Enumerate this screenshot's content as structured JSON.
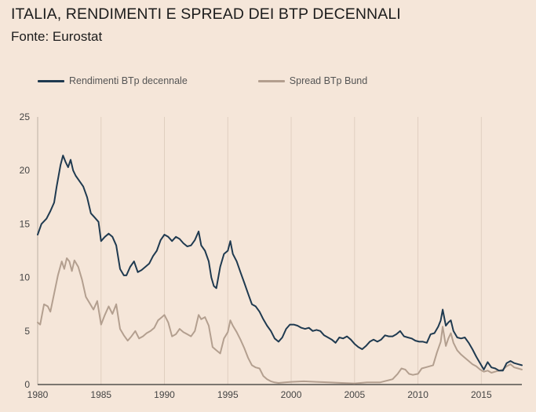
{
  "chart_data": {
    "type": "line",
    "title": "ITALIA, RENDIMENTI E SPREAD DEI BTP DECENNALI",
    "subtitle": "Fonte: Eurostat",
    "xlabel": "",
    "ylabel": "",
    "xlim": [
      1980,
      2018.2
    ],
    "ylim": [
      0,
      25
    ],
    "x_ticks": [
      "1980",
      "1985",
      "1990",
      "1995",
      "2000",
      "2005",
      "2010",
      "2015"
    ],
    "y_ticks": [
      "0",
      "5",
      "10",
      "15",
      "20",
      "25"
    ],
    "grid": "vertical",
    "legend_position": "top-left",
    "colors": {
      "background": "#f5e6d9",
      "yield": "#1f3a50",
      "spread": "#b39f8f",
      "grid": "#e0cfc0"
    },
    "series": [
      {
        "name": "Rendimenti BTp decennale",
        "points": [
          [
            1980.0,
            14.0
          ],
          [
            1980.3,
            15.0
          ],
          [
            1980.7,
            15.5
          ],
          [
            1981.0,
            16.2
          ],
          [
            1981.3,
            17.0
          ],
          [
            1981.5,
            18.5
          ],
          [
            1981.8,
            20.5
          ],
          [
            1982.0,
            21.4
          ],
          [
            1982.2,
            20.8
          ],
          [
            1982.4,
            20.3
          ],
          [
            1982.6,
            21.0
          ],
          [
            1982.8,
            20.0
          ],
          [
            1983.0,
            19.5
          ],
          [
            1983.3,
            19.0
          ],
          [
            1983.6,
            18.5
          ],
          [
            1983.9,
            17.5
          ],
          [
            1984.2,
            16.0
          ],
          [
            1984.5,
            15.6
          ],
          [
            1984.8,
            15.2
          ],
          [
            1985.0,
            13.4
          ],
          [
            1985.3,
            13.8
          ],
          [
            1985.6,
            14.1
          ],
          [
            1985.9,
            13.8
          ],
          [
            1986.2,
            13.0
          ],
          [
            1986.5,
            10.8
          ],
          [
            1986.8,
            10.2
          ],
          [
            1987.0,
            10.2
          ],
          [
            1987.3,
            11.0
          ],
          [
            1987.6,
            11.5
          ],
          [
            1987.9,
            10.5
          ],
          [
            1988.2,
            10.7
          ],
          [
            1988.5,
            11.0
          ],
          [
            1988.8,
            11.3
          ],
          [
            1989.1,
            12.0
          ],
          [
            1989.4,
            12.5
          ],
          [
            1989.7,
            13.5
          ],
          [
            1990.0,
            14.0
          ],
          [
            1990.3,
            13.8
          ],
          [
            1990.6,
            13.4
          ],
          [
            1990.9,
            13.8
          ],
          [
            1991.2,
            13.6
          ],
          [
            1991.5,
            13.2
          ],
          [
            1991.8,
            12.9
          ],
          [
            1992.1,
            13.0
          ],
          [
            1992.4,
            13.5
          ],
          [
            1992.7,
            14.3
          ],
          [
            1992.9,
            13.0
          ],
          [
            1993.2,
            12.5
          ],
          [
            1993.5,
            11.5
          ],
          [
            1993.7,
            10.0
          ],
          [
            1993.9,
            9.2
          ],
          [
            1994.1,
            9.0
          ],
          [
            1994.4,
            11.0
          ],
          [
            1994.7,
            12.2
          ],
          [
            1995.0,
            12.5
          ],
          [
            1995.2,
            13.4
          ],
          [
            1995.4,
            12.2
          ],
          [
            1995.7,
            11.5
          ],
          [
            1996.0,
            10.5
          ],
          [
            1996.3,
            9.5
          ],
          [
            1996.6,
            8.5
          ],
          [
            1996.9,
            7.5
          ],
          [
            1997.2,
            7.3
          ],
          [
            1997.5,
            6.8
          ],
          [
            1997.8,
            6.1
          ],
          [
            1998.1,
            5.5
          ],
          [
            1998.4,
            5.0
          ],
          [
            1998.7,
            4.3
          ],
          [
            1999.0,
            4.0
          ],
          [
            1999.3,
            4.4
          ],
          [
            1999.6,
            5.2
          ],
          [
            1999.9,
            5.6
          ],
          [
            2000.2,
            5.6
          ],
          [
            2000.5,
            5.5
          ],
          [
            2000.8,
            5.3
          ],
          [
            2001.1,
            5.2
          ],
          [
            2001.4,
            5.3
          ],
          [
            2001.7,
            5.0
          ],
          [
            2002.0,
            5.1
          ],
          [
            2002.3,
            5.0
          ],
          [
            2002.6,
            4.6
          ],
          [
            2002.9,
            4.4
          ],
          [
            2003.2,
            4.2
          ],
          [
            2003.5,
            3.9
          ],
          [
            2003.8,
            4.4
          ],
          [
            2004.1,
            4.3
          ],
          [
            2004.4,
            4.5
          ],
          [
            2004.7,
            4.2
          ],
          [
            2005.0,
            3.8
          ],
          [
            2005.3,
            3.5
          ],
          [
            2005.6,
            3.3
          ],
          [
            2005.9,
            3.6
          ],
          [
            2006.2,
            4.0
          ],
          [
            2006.5,
            4.2
          ],
          [
            2006.8,
            4.0
          ],
          [
            2007.1,
            4.2
          ],
          [
            2007.4,
            4.6
          ],
          [
            2007.7,
            4.5
          ],
          [
            2008.0,
            4.5
          ],
          [
            2008.3,
            4.7
          ],
          [
            2008.6,
            5.0
          ],
          [
            2008.9,
            4.5
          ],
          [
            2009.2,
            4.4
          ],
          [
            2009.5,
            4.3
          ],
          [
            2009.8,
            4.1
          ],
          [
            2010.1,
            4.0
          ],
          [
            2010.4,
            4.0
          ],
          [
            2010.7,
            3.9
          ],
          [
            2011.0,
            4.7
          ],
          [
            2011.3,
            4.8
          ],
          [
            2011.6,
            5.4
          ],
          [
            2011.8,
            6.0
          ],
          [
            2011.95,
            7.0
          ],
          [
            2012.2,
            5.5
          ],
          [
            2012.4,
            5.8
          ],
          [
            2012.6,
            6.0
          ],
          [
            2012.8,
            5.0
          ],
          [
            2013.1,
            4.4
          ],
          [
            2013.4,
            4.3
          ],
          [
            2013.7,
            4.4
          ],
          [
            2014.0,
            3.9
          ],
          [
            2014.3,
            3.3
          ],
          [
            2014.6,
            2.6
          ],
          [
            2014.9,
            2.0
          ],
          [
            2015.2,
            1.4
          ],
          [
            2015.5,
            2.1
          ],
          [
            2015.8,
            1.6
          ],
          [
            2016.1,
            1.5
          ],
          [
            2016.4,
            1.3
          ],
          [
            2016.7,
            1.3
          ],
          [
            2017.0,
            2.0
          ],
          [
            2017.3,
            2.2
          ],
          [
            2017.6,
            2.0
          ],
          [
            2017.9,
            1.9
          ],
          [
            2018.2,
            1.8
          ]
        ]
      },
      {
        "name": "Spread BTp Bund",
        "points": [
          [
            1980.0,
            5.8
          ],
          [
            1980.2,
            5.6
          ],
          [
            1980.5,
            7.5
          ],
          [
            1980.8,
            7.3
          ],
          [
            1981.0,
            6.8
          ],
          [
            1981.3,
            8.5
          ],
          [
            1981.6,
            10.2
          ],
          [
            1981.9,
            11.5
          ],
          [
            1982.1,
            10.8
          ],
          [
            1982.3,
            11.8
          ],
          [
            1982.5,
            11.5
          ],
          [
            1982.7,
            10.6
          ],
          [
            1982.9,
            11.6
          ],
          [
            1983.2,
            11.0
          ],
          [
            1983.5,
            9.8
          ],
          [
            1983.8,
            8.2
          ],
          [
            1984.1,
            7.6
          ],
          [
            1984.4,
            7.0
          ],
          [
            1984.7,
            7.8
          ],
          [
            1985.0,
            5.6
          ],
          [
            1985.3,
            6.5
          ],
          [
            1985.6,
            7.3
          ],
          [
            1985.9,
            6.6
          ],
          [
            1986.2,
            7.5
          ],
          [
            1986.5,
            5.2
          ],
          [
            1986.8,
            4.6
          ],
          [
            1987.1,
            4.1
          ],
          [
            1987.4,
            4.5
          ],
          [
            1987.7,
            5.0
          ],
          [
            1988.0,
            4.3
          ],
          [
            1988.3,
            4.5
          ],
          [
            1988.6,
            4.8
          ],
          [
            1988.9,
            5.0
          ],
          [
            1989.2,
            5.3
          ],
          [
            1989.5,
            6.0
          ],
          [
            1989.8,
            6.3
          ],
          [
            1990.0,
            6.5
          ],
          [
            1990.3,
            5.8
          ],
          [
            1990.6,
            4.5
          ],
          [
            1990.9,
            4.7
          ],
          [
            1991.2,
            5.2
          ],
          [
            1991.5,
            4.9
          ],
          [
            1991.8,
            4.7
          ],
          [
            1992.1,
            4.5
          ],
          [
            1992.4,
            5.0
          ],
          [
            1992.7,
            6.5
          ],
          [
            1992.9,
            6.1
          ],
          [
            1993.2,
            6.3
          ],
          [
            1993.5,
            5.5
          ],
          [
            1993.8,
            3.5
          ],
          [
            1994.1,
            3.2
          ],
          [
            1994.4,
            2.9
          ],
          [
            1994.7,
            4.3
          ],
          [
            1995.0,
            4.9
          ],
          [
            1995.2,
            6.0
          ],
          [
            1995.4,
            5.5
          ],
          [
            1995.7,
            4.9
          ],
          [
            1996.0,
            4.2
          ],
          [
            1996.3,
            3.4
          ],
          [
            1996.6,
            2.5
          ],
          [
            1996.9,
            1.8
          ],
          [
            1997.2,
            1.6
          ],
          [
            1997.5,
            1.5
          ],
          [
            1997.8,
            0.8
          ],
          [
            1998.1,
            0.5
          ],
          [
            1998.4,
            0.3
          ],
          [
            1998.7,
            0.2
          ],
          [
            1999.0,
            0.15
          ],
          [
            1999.5,
            0.2
          ],
          [
            2000.0,
            0.25
          ],
          [
            2001.0,
            0.3
          ],
          [
            2002.0,
            0.25
          ],
          [
            2003.0,
            0.2
          ],
          [
            2004.0,
            0.15
          ],
          [
            2005.0,
            0.1
          ],
          [
            2006.0,
            0.2
          ],
          [
            2007.0,
            0.2
          ],
          [
            2008.0,
            0.5
          ],
          [
            2008.4,
            1.0
          ],
          [
            2008.7,
            1.5
          ],
          [
            2009.0,
            1.4
          ],
          [
            2009.3,
            1.0
          ],
          [
            2009.6,
            0.9
          ],
          [
            2010.0,
            1.0
          ],
          [
            2010.3,
            1.5
          ],
          [
            2010.6,
            1.6
          ],
          [
            2010.9,
            1.7
          ],
          [
            2011.2,
            1.8
          ],
          [
            2011.5,
            3.0
          ],
          [
            2011.8,
            4.0
          ],
          [
            2011.95,
            5.4
          ],
          [
            2012.2,
            3.6
          ],
          [
            2012.4,
            4.3
          ],
          [
            2012.6,
            4.8
          ],
          [
            2012.8,
            3.9
          ],
          [
            2013.1,
            3.2
          ],
          [
            2013.4,
            2.8
          ],
          [
            2013.7,
            2.5
          ],
          [
            2014.0,
            2.2
          ],
          [
            2014.3,
            1.9
          ],
          [
            2014.6,
            1.7
          ],
          [
            2014.9,
            1.4
          ],
          [
            2015.2,
            1.2
          ],
          [
            2015.5,
            1.3
          ],
          [
            2015.8,
            1.1
          ],
          [
            2016.1,
            1.2
          ],
          [
            2016.4,
            1.3
          ],
          [
            2016.7,
            1.4
          ],
          [
            2017.0,
            1.7
          ],
          [
            2017.3,
            1.9
          ],
          [
            2017.6,
            1.6
          ],
          [
            2017.9,
            1.5
          ],
          [
            2018.2,
            1.4
          ]
        ]
      }
    ]
  }
}
